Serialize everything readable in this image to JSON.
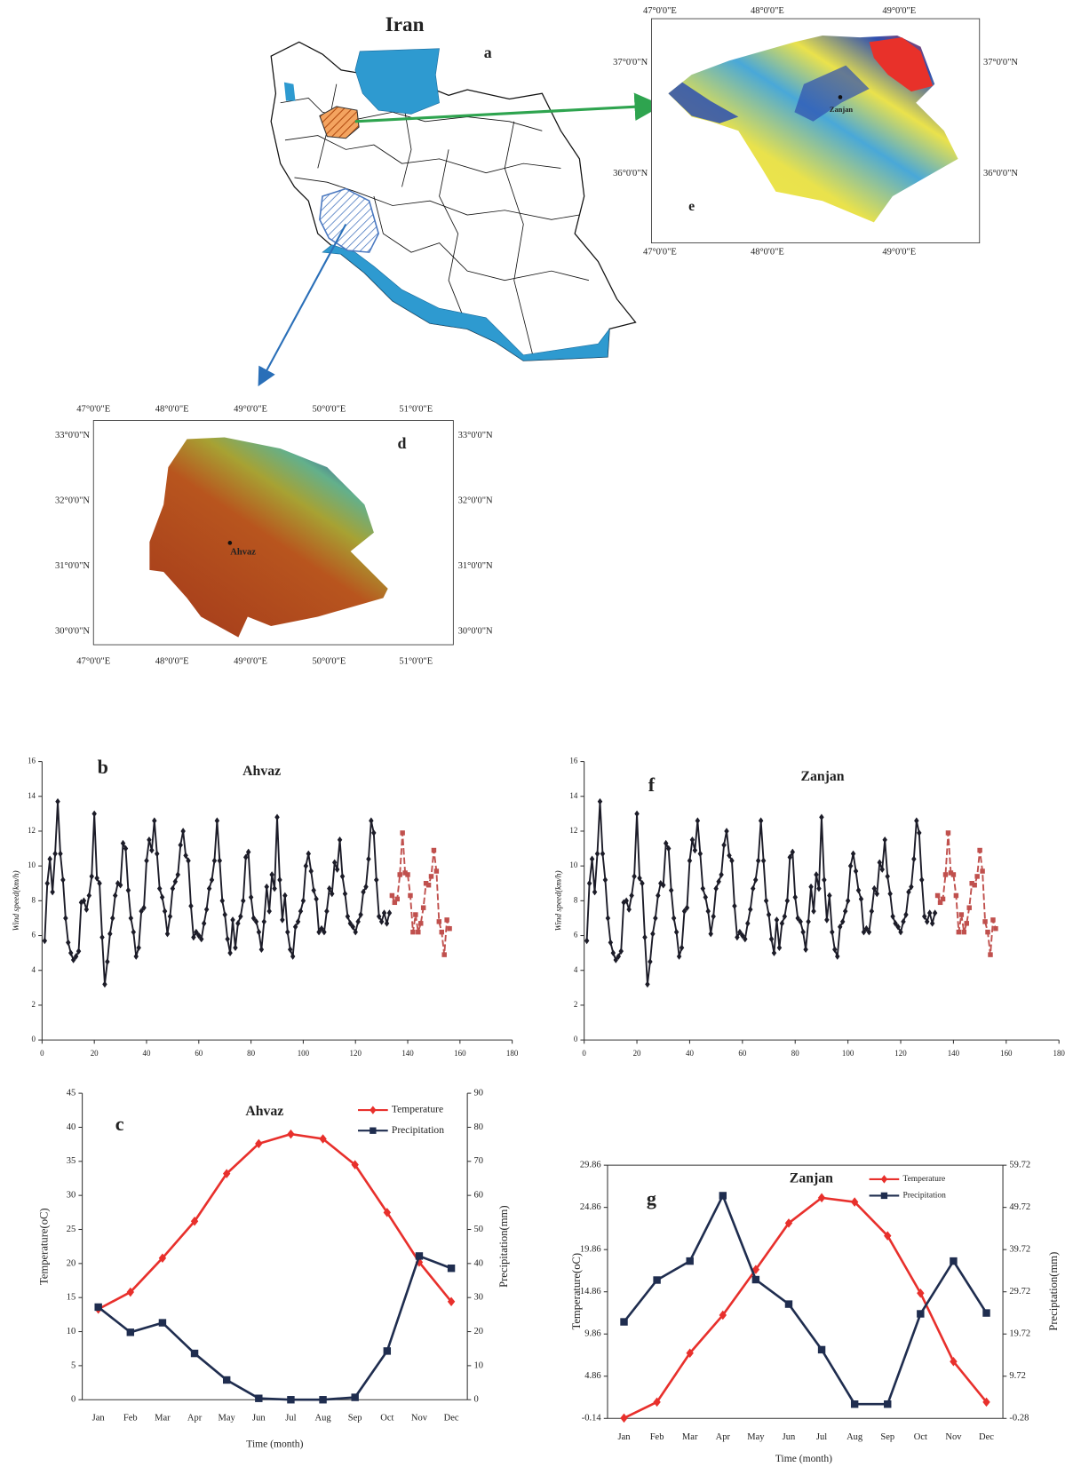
{
  "figure": {
    "map_a": {
      "title": "Iran",
      "label": "a"
    },
    "map_e": {
      "label": "e",
      "city": "Zanjan",
      "lon_labels": [
        "47°0'0\"E",
        "48°0'0\"E",
        "49°0'0\"E"
      ],
      "lat_labels": [
        "37°0'0\"N",
        "36°0'0\"N"
      ]
    },
    "map_d": {
      "label": "d",
      "city": "Ahvaz",
      "lon_labels": [
        "47°0'0\"E",
        "48°0'0\"E",
        "49°0'0\"E",
        "50°0'0\"E",
        "51°0'0\"E"
      ],
      "lat_labels": [
        "33°0'0\"N",
        "32°0'0\"N",
        "31°0'0\"N",
        "30°0'0\"N"
      ]
    }
  },
  "chart_data": [
    {
      "type": "line",
      "title": "Ahvaz",
      "panel_label": "b",
      "ylabel": "Wind speed(km/h)",
      "xlim": [
        0,
        180
      ],
      "xticks": [
        0,
        20,
        40,
        60,
        80,
        100,
        120,
        140,
        160,
        180
      ],
      "ylim": [
        0,
        16
      ],
      "yticks": [
        0,
        2,
        4,
        6,
        8,
        10,
        12,
        14,
        16
      ],
      "series": [
        {
          "color": "#1c1c28",
          "marker": "diamond",
          "dashed": false,
          "x": [
            1,
            2,
            3,
            4,
            5,
            6,
            7,
            8,
            9,
            10,
            11,
            12,
            13,
            14,
            15,
            16,
            17,
            18,
            19,
            20,
            21,
            22,
            23,
            24,
            25,
            26,
            27,
            28,
            29,
            30,
            31,
            32,
            33,
            34,
            35,
            36,
            37,
            38,
            39,
            40,
            41,
            42,
            43,
            44,
            45,
            46,
            47,
            48,
            49,
            50,
            51,
            52,
            53,
            54,
            55,
            56,
            57,
            58,
            59,
            60,
            61,
            62,
            63,
            64,
            65,
            66,
            67,
            68,
            69,
            70,
            71,
            72,
            73,
            74,
            75,
            76,
            77,
            78,
            79,
            80,
            81,
            82,
            83,
            84,
            85,
            86,
            87,
            88,
            89,
            90,
            91,
            92,
            93,
            94,
            95,
            96,
            97,
            98,
            99,
            100,
            101,
            102,
            103,
            104,
            105,
            106,
            107,
            108,
            109,
            110,
            111,
            112,
            113,
            114,
            115,
            116,
            117,
            118,
            119,
            120,
            121,
            122,
            123,
            124,
            125,
            126,
            127,
            128,
            129,
            130,
            131,
            132,
            133
          ],
          "values": [
            5.7,
            9,
            10.4,
            8.5,
            10.7,
            13.7,
            10.7,
            9.2,
            7,
            5.6,
            5,
            4.6,
            4.8,
            5.1,
            7.9,
            8,
            7.5,
            8.3,
            9.4,
            13,
            9.3,
            9,
            5.9,
            3.2,
            4.5,
            6.1,
            7,
            8.3,
            9,
            8.9,
            11.3,
            11,
            8.6,
            7,
            6.2,
            4.8,
            5.3,
            7.4,
            7.6,
            10.3,
            11.5,
            10.9,
            12.6,
            10.7,
            8.7,
            8.2,
            7.4,
            6.1,
            7.1,
            8.7,
            9.1,
            9.5,
            11.2,
            12,
            10.6,
            10.3,
            7.7,
            5.9,
            6.2,
            6,
            5.8,
            6.7,
            7.5,
            8.7,
            9.2,
            10.3,
            12.6,
            10.3,
            8,
            7.2,
            5.8,
            5,
            6.9,
            5.3,
            6.7,
            7.1,
            8,
            10.5,
            10.8,
            8.2,
            7,
            6.8,
            6.2,
            5.2,
            6.8,
            8.8,
            7.4,
            9.5,
            8.7,
            12.8,
            9.2,
            6.9,
            8.3,
            6.2,
            5.2,
            4.8,
            6.5,
            6.8,
            7.4,
            8,
            10,
            10.7,
            9.7,
            8.6,
            8.1,
            6.2,
            6.4,
            6.2,
            7.4,
            8.7,
            8.4,
            10.2,
            9.8,
            11.5,
            9.4,
            8.4,
            7.1,
            6.7,
            6.5,
            6.2,
            6.8,
            7.2,
            8.5,
            8.8,
            10.4,
            12.6,
            11.9,
            9.2,
            7.1,
            6.8,
            7.3,
            6.7,
            7.3
          ]
        },
        {
          "color": "#c0504d",
          "marker": "square",
          "dashed": true,
          "x": [
            134,
            135,
            136,
            137,
            138,
            139,
            140,
            141,
            142,
            143,
            144,
            145,
            146,
            147,
            148,
            149,
            150,
            151,
            152,
            153,
            154,
            155,
            156
          ],
          "values": [
            8.3,
            7.9,
            8.1,
            9.5,
            11.9,
            9.6,
            9.5,
            8.3,
            6.2,
            7.2,
            6.2,
            6.7,
            7.6,
            9,
            8.9,
            9.4,
            10.9,
            9.7,
            6.8,
            6.2,
            4.9,
            6.9,
            6.4
          ]
        }
      ]
    },
    {
      "type": "line",
      "title": "Zanjan",
      "panel_label": "f",
      "ylabel": "Wind speed(km/h)",
      "xlim": [
        0,
        180
      ],
      "xticks": [
        0,
        20,
        40,
        60,
        80,
        100,
        120,
        140,
        160,
        180
      ],
      "ylim": [
        0,
        16
      ],
      "yticks": [
        0,
        2,
        4,
        6,
        8,
        10,
        12,
        14,
        16
      ],
      "series": [
        {
          "color": "#1c1c28",
          "marker": "diamond",
          "dashed": false,
          "x": [
            1,
            2,
            3,
            4,
            5,
            6,
            7,
            8,
            9,
            10,
            11,
            12,
            13,
            14,
            15,
            16,
            17,
            18,
            19,
            20,
            21,
            22,
            23,
            24,
            25,
            26,
            27,
            28,
            29,
            30,
            31,
            32,
            33,
            34,
            35,
            36,
            37,
            38,
            39,
            40,
            41,
            42,
            43,
            44,
            45,
            46,
            47,
            48,
            49,
            50,
            51,
            52,
            53,
            54,
            55,
            56,
            57,
            58,
            59,
            60,
            61,
            62,
            63,
            64,
            65,
            66,
            67,
            68,
            69,
            70,
            71,
            72,
            73,
            74,
            75,
            76,
            77,
            78,
            79,
            80,
            81,
            82,
            83,
            84,
            85,
            86,
            87,
            88,
            89,
            90,
            91,
            92,
            93,
            94,
            95,
            96,
            97,
            98,
            99,
            100,
            101,
            102,
            103,
            104,
            105,
            106,
            107,
            108,
            109,
            110,
            111,
            112,
            113,
            114,
            115,
            116,
            117,
            118,
            119,
            120,
            121,
            122,
            123,
            124,
            125,
            126,
            127,
            128,
            129,
            130,
            131,
            132,
            133
          ],
          "values": [
            5.7,
            9,
            10.4,
            8.5,
            10.7,
            13.7,
            10.7,
            9.2,
            7,
            5.6,
            5,
            4.6,
            4.8,
            5.1,
            7.9,
            8,
            7.5,
            8.3,
            9.4,
            13,
            9.3,
            9,
            5.9,
            3.2,
            4.5,
            6.1,
            7,
            8.3,
            9,
            8.9,
            11.3,
            11,
            8.6,
            7,
            6.2,
            4.8,
            5.3,
            7.4,
            7.6,
            10.3,
            11.5,
            10.9,
            12.6,
            10.7,
            8.7,
            8.2,
            7.4,
            6.1,
            7.1,
            8.7,
            9.1,
            9.5,
            11.2,
            12,
            10.6,
            10.3,
            7.7,
            5.9,
            6.2,
            6,
            5.8,
            6.7,
            7.5,
            8.7,
            9.2,
            10.3,
            12.6,
            10.3,
            8,
            7.2,
            5.8,
            5,
            6.9,
            5.3,
            6.7,
            7.1,
            8,
            10.5,
            10.8,
            8.2,
            7,
            6.8,
            6.2,
            5.2,
            6.8,
            8.8,
            7.4,
            9.5,
            8.7,
            12.8,
            9.2,
            6.9,
            8.3,
            6.2,
            5.2,
            4.8,
            6.5,
            6.8,
            7.4,
            8,
            10,
            10.7,
            9.7,
            8.6,
            8.1,
            6.2,
            6.4,
            6.2,
            7.4,
            8.7,
            8.4,
            10.2,
            9.8,
            11.5,
            9.4,
            8.4,
            7.1,
            6.7,
            6.5,
            6.2,
            6.8,
            7.2,
            8.5,
            8.8,
            10.4,
            12.6,
            11.9,
            9.2,
            7.1,
            6.8,
            7.3,
            6.7,
            7.3
          ]
        },
        {
          "color": "#c0504d",
          "marker": "square",
          "dashed": true,
          "x": [
            134,
            135,
            136,
            137,
            138,
            139,
            140,
            141,
            142,
            143,
            144,
            145,
            146,
            147,
            148,
            149,
            150,
            151,
            152,
            153,
            154,
            155,
            156
          ],
          "values": [
            8.3,
            7.9,
            8.1,
            9.5,
            11.9,
            9.6,
            9.5,
            8.3,
            6.2,
            7.2,
            6.2,
            6.7,
            7.6,
            9,
            8.9,
            9.4,
            10.9,
            9.7,
            6.8,
            6.2,
            4.9,
            6.9,
            6.4
          ]
        }
      ]
    },
    {
      "type": "line",
      "title": "Ahvaz",
      "panel_label": "c",
      "xlabel": "Time (month)",
      "ylabel": "Temperature(oC)",
      "y2label": "Precipitation(mm)",
      "categories": [
        "Jan",
        "Feb",
        "Mar",
        "Apr",
        "May",
        "Jun",
        "Jul",
        "Aug",
        "Sep",
        "Oct",
        "Nov",
        "Dec"
      ],
      "ylim": [
        0,
        45
      ],
      "yticks": [
        0,
        5,
        10,
        15,
        20,
        25,
        30,
        35,
        40,
        45
      ],
      "y2lim": [
        0,
        90
      ],
      "y2ticks": [
        0,
        10,
        20,
        30,
        40,
        50,
        60,
        70,
        80,
        90
      ],
      "legend": "top-right",
      "series": [
        {
          "name": "Temperature",
          "color": "#e8302c",
          "marker": "diamond",
          "values": [
            13.3,
            15.8,
            20.8,
            26.2,
            33.2,
            37.6,
            39,
            38.3,
            34.5,
            27.5,
            20.2,
            14.4
          ]
        },
        {
          "name": "Precipitation",
          "color": "#1f2d4f",
          "marker": "square",
          "axis": "y2",
          "values": [
            27.2,
            19.8,
            22.6,
            13.6,
            5.8,
            0.4,
            0,
            0,
            0.7,
            14.3,
            42.2,
            38.6
          ]
        }
      ]
    },
    {
      "type": "line",
      "title": "Zanjan",
      "panel_label": "g",
      "xlabel": "Time (month)",
      "ylabel": "Temperature(oC)",
      "y2label": "Preciptation(mm)",
      "categories": [
        "Jan",
        "Feb",
        "Mar",
        "Apr",
        "May",
        "Jun",
        "Jul",
        "Aug",
        "Sep",
        "Oct",
        "Nov",
        "Dec"
      ],
      "ylim": [
        -0.14,
        29.86
      ],
      "yticks": [
        -0.14,
        4.86,
        9.86,
        14.86,
        19.86,
        24.86,
        29.86
      ],
      "y2lim": [
        -0.28,
        59.72
      ],
      "y2ticks": [
        -0.28,
        9.72,
        19.72,
        29.72,
        39.72,
        49.72,
        59.72
      ],
      "legend": "top-right",
      "frame": true,
      "series": [
        {
          "name": "Temperature",
          "color": "#e8302c",
          "marker": "diamond",
          "values": [
            -0.1,
            1.8,
            7.6,
            12.1,
            17.5,
            23,
            26,
            25.5,
            21.5,
            14.7,
            6.6,
            1.8
          ]
        },
        {
          "name": "Precipitation",
          "color": "#1f2d4f",
          "marker": "square",
          "axis": "y2",
          "values": [
            22.6,
            32.5,
            37,
            52.5,
            32.6,
            26.8,
            16,
            3.1,
            3.1,
            24.5,
            37,
            24.7
          ]
        }
      ]
    }
  ]
}
